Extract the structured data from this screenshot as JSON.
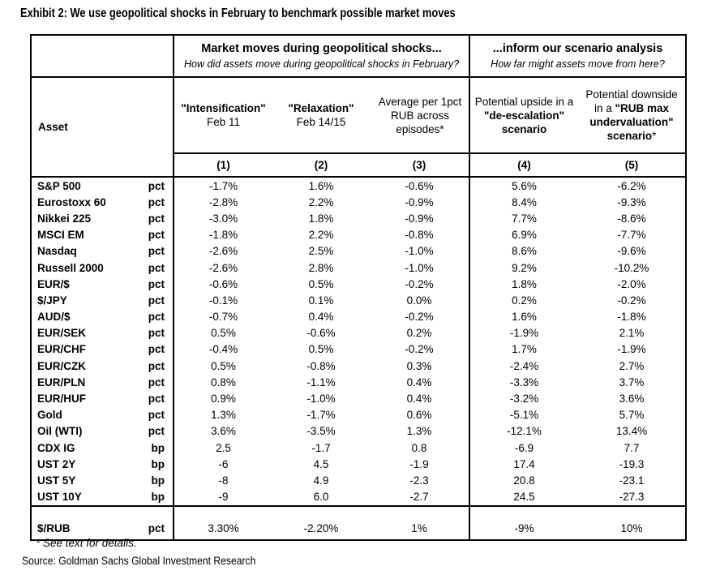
{
  "colors": {
    "background": "#ffffff",
    "text": "#000000",
    "border": "#000000"
  },
  "page": {
    "source": "Source: Goldman Sachs Global Investment Research"
  },
  "chart_data": {
    "type": "table",
    "title": "Exhibit 2: We use geopolitical shocks in February to benchmark possible market moves",
    "groups": [
      {
        "title": "Market moves during geopolitical shocks...",
        "subtitle": "How did assets move during geopolitical shocks in February?"
      },
      {
        "title": "...inform our scenario analysis",
        "subtitle": "How far might assets move from here?"
      }
    ],
    "asset_header": "Asset",
    "columns": [
      {
        "line1": "\"Intensification\"",
        "line2": "Feb 11",
        "num": "(1)"
      },
      {
        "line1": "\"Relaxation\"",
        "line2": "Feb 14/15",
        "num": "(2)"
      },
      {
        "text": "Average per 1pct RUB across episodes*",
        "num": "(3)"
      },
      {
        "prefix": "Potential upside in a ",
        "bold": "\"de-escalation\" scenario",
        "suffix": "",
        "num": "(4)"
      },
      {
        "prefix": "Potential downside in a ",
        "bold": "\"RUB max undervaluation\" scenario",
        "suffix": "*",
        "num": "(5)"
      }
    ],
    "rows": [
      {
        "asset": "S&P 500",
        "unit": "pct",
        "values": [
          "-1.7%",
          "1.6%",
          "-0.6%",
          "5.6%",
          "-6.2%"
        ]
      },
      {
        "asset": "Eurostoxx 60",
        "unit": "pct",
        "values": [
          "-2.8%",
          "2.2%",
          "-0.9%",
          "8.4%",
          "-9.3%"
        ]
      },
      {
        "asset": "Nikkei 225",
        "unit": "pct",
        "values": [
          "-3.0%",
          "1.8%",
          "-0.9%",
          "7.7%",
          "-8.6%"
        ]
      },
      {
        "asset": "MSCI EM",
        "unit": "pct",
        "values": [
          "-1.8%",
          "2.2%",
          "-0.8%",
          "6.9%",
          "-7.7%"
        ]
      },
      {
        "asset": "Nasdaq",
        "unit": "pct",
        "values": [
          "-2.6%",
          "2.5%",
          "-1.0%",
          "8.6%",
          "-9.6%"
        ]
      },
      {
        "asset": "Russell 2000",
        "unit": "pct",
        "values": [
          "-2.6%",
          "2.8%",
          "-1.0%",
          "9.2%",
          "-10.2%"
        ]
      },
      {
        "asset": "EUR/$",
        "unit": "pct",
        "values": [
          "-0.6%",
          "0.5%",
          "-0.2%",
          "1.8%",
          "-2.0%"
        ]
      },
      {
        "asset": "$/JPY",
        "unit": "pct",
        "values": [
          "-0.1%",
          "0.1%",
          "0.0%",
          "0.2%",
          "-0.2%"
        ]
      },
      {
        "asset": "AUD/$",
        "unit": "pct",
        "values": [
          "-0.7%",
          "0.4%",
          "-0.2%",
          "1.6%",
          "-1.8%"
        ]
      },
      {
        "asset": "EUR/SEK",
        "unit": "pct",
        "values": [
          "0.5%",
          "-0.6%",
          "0.2%",
          "-1.9%",
          "2.1%"
        ]
      },
      {
        "asset": "EUR/CHF",
        "unit": "pct",
        "values": [
          "-0.4%",
          "0.5%",
          "-0.2%",
          "1.7%",
          "-1.9%"
        ]
      },
      {
        "asset": "EUR/CZK",
        "unit": "pct",
        "values": [
          "0.5%",
          "-0.8%",
          "0.3%",
          "-2.4%",
          "2.7%"
        ]
      },
      {
        "asset": "EUR/PLN",
        "unit": "pct",
        "values": [
          "0.8%",
          "-1.1%",
          "0.4%",
          "-3.3%",
          "3.7%"
        ]
      },
      {
        "asset": "EUR/HUF",
        "unit": "pct",
        "values": [
          "0.9%",
          "-1.0%",
          "0.4%",
          "-3.2%",
          "3.6%"
        ]
      },
      {
        "asset": "Gold",
        "unit": "pct",
        "values": [
          "1.3%",
          "-1.7%",
          "0.6%",
          "-5.1%",
          "5.7%"
        ]
      },
      {
        "asset": "Oil (WTI)",
        "unit": "pct",
        "values": [
          "3.6%",
          "-3.5%",
          "1.3%",
          "-12.1%",
          "13.4%"
        ]
      },
      {
        "asset": "CDX IG",
        "unit": "bp",
        "values": [
          "2.5",
          "-1.7",
          "0.8",
          "-6.9",
          "7.7"
        ]
      },
      {
        "asset": "UST 2Y",
        "unit": "bp",
        "values": [
          "-6",
          "4.5",
          "-1.9",
          "17.4",
          "-19.3"
        ]
      },
      {
        "asset": "UST 5Y",
        "unit": "bp",
        "values": [
          "-8",
          "4.9",
          "-2.3",
          "20.8",
          "-23.1"
        ]
      },
      {
        "asset": "UST 10Y",
        "unit": "bp",
        "values": [
          "-9",
          "6.0",
          "-2.7",
          "24.5",
          "-27.3"
        ]
      }
    ],
    "special_row": {
      "asset": "$/RUB",
      "unit": "pct",
      "values": [
        "3.30%",
        "-2.20%",
        "1%",
        "-9%",
        "10%"
      ]
    },
    "footnote": "* See text for details."
  }
}
